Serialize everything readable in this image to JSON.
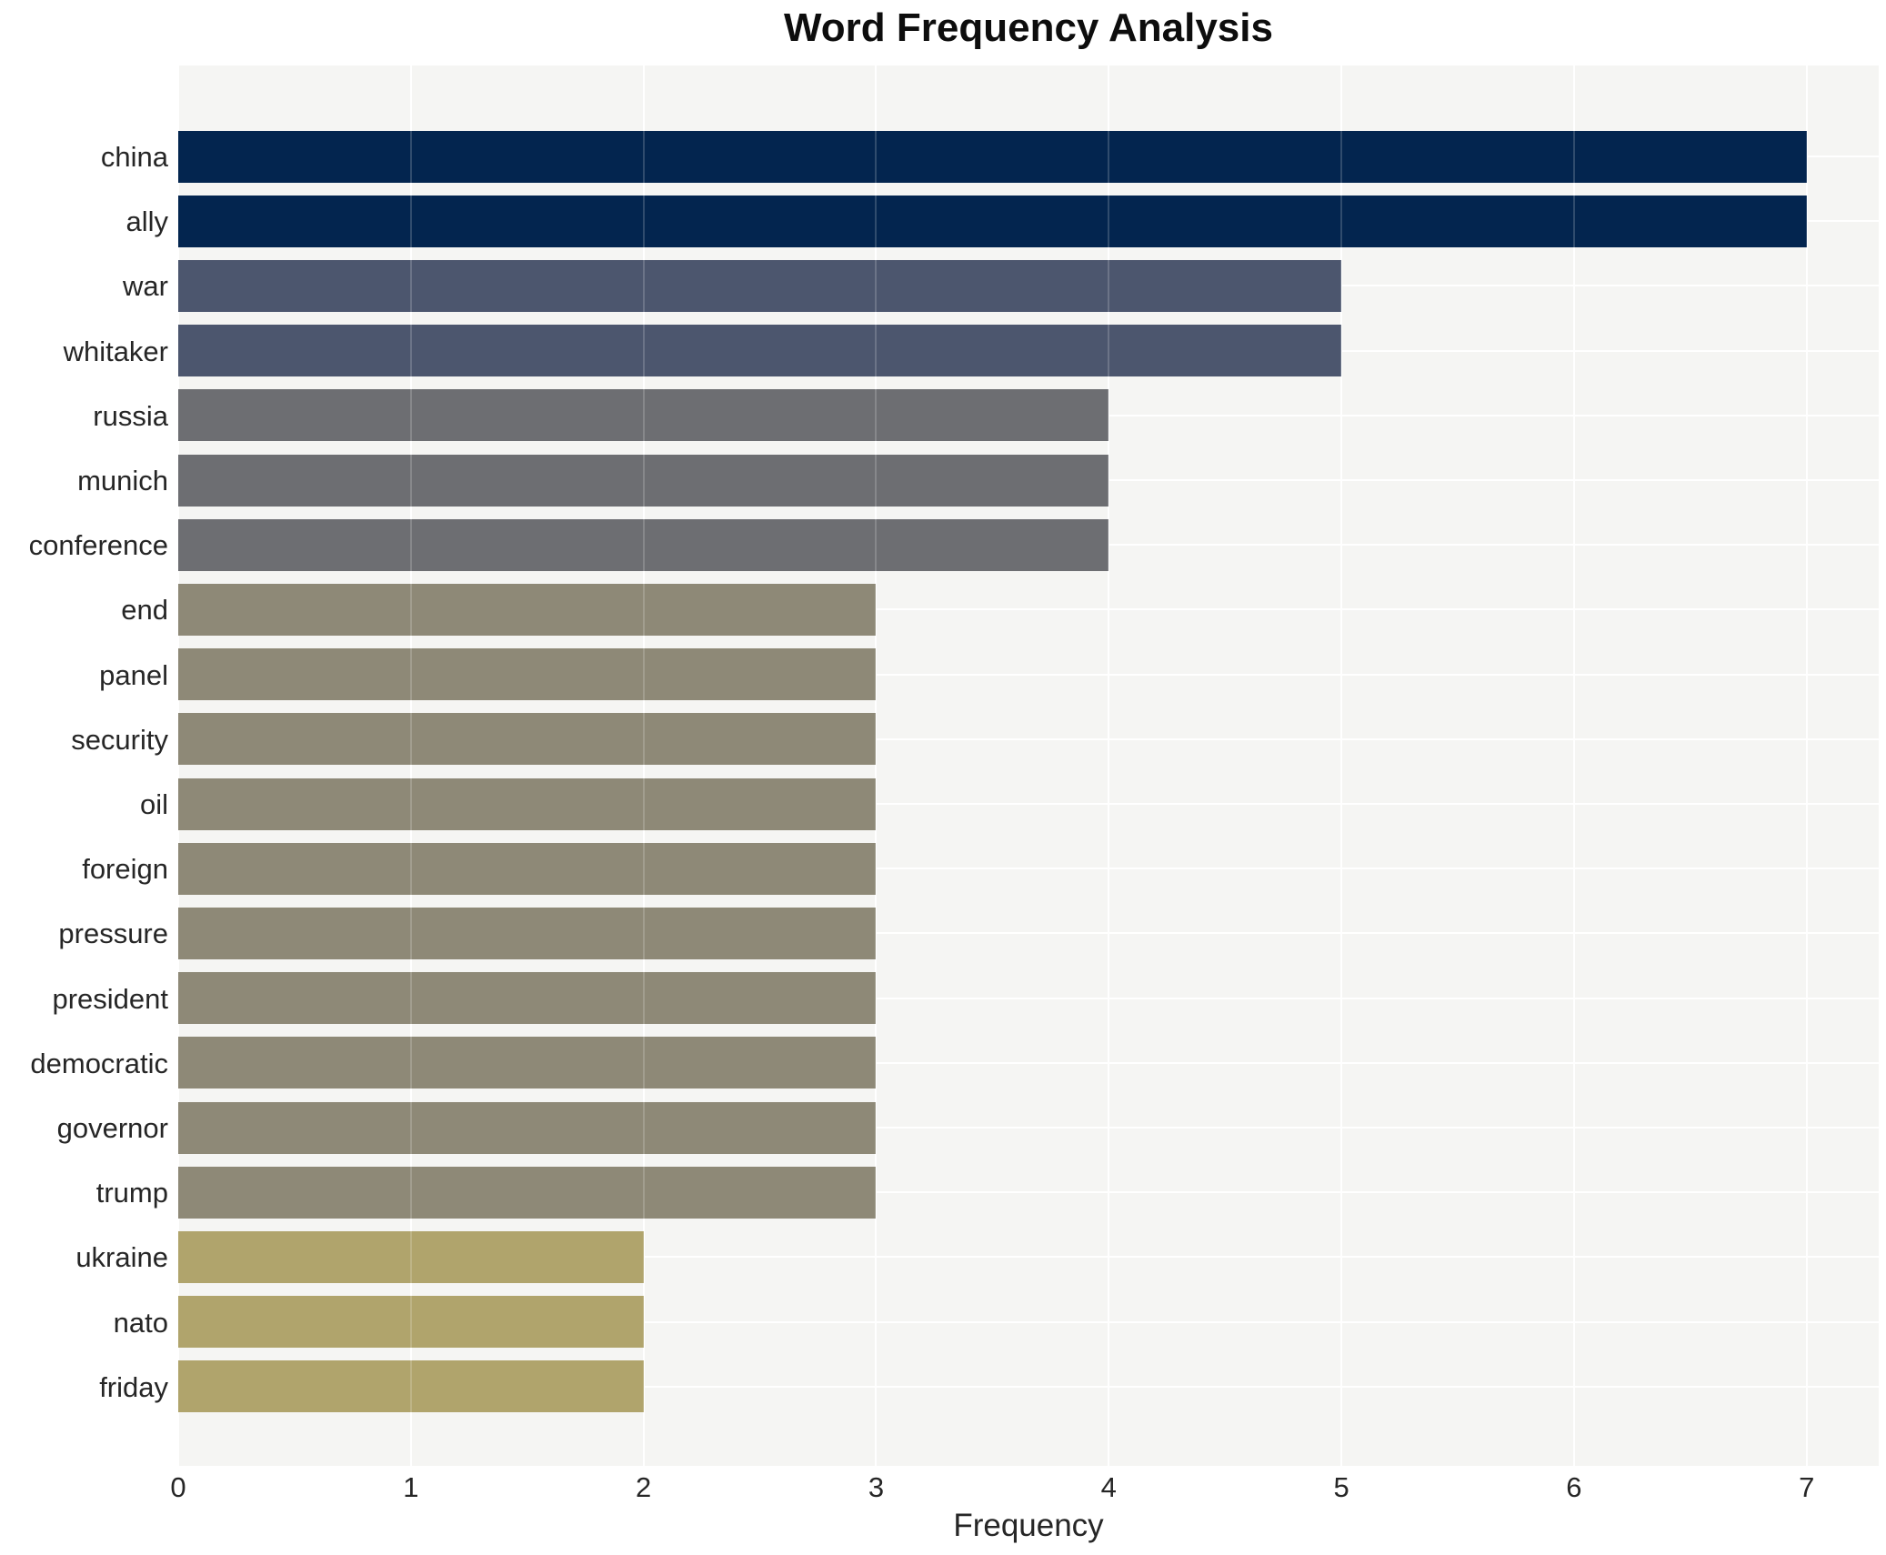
{
  "title": "Word Frequency Analysis",
  "chart_data": {
    "type": "bar",
    "orientation": "horizontal",
    "title": "Word Frequency Analysis",
    "xlabel": "Frequency",
    "ylabel": "",
    "categories": [
      "china",
      "ally",
      "war",
      "whitaker",
      "russia",
      "munich",
      "conference",
      "end",
      "panel",
      "security",
      "oil",
      "foreign",
      "pressure",
      "president",
      "democratic",
      "governor",
      "trump",
      "ukraine",
      "nato",
      "friday"
    ],
    "values": [
      7,
      7,
      5,
      5,
      4,
      4,
      4,
      3,
      3,
      3,
      3,
      3,
      3,
      3,
      3,
      3,
      3,
      2,
      2,
      2
    ],
    "xlim": [
      0,
      7.31
    ],
    "xticks": [
      0,
      1,
      2,
      3,
      4,
      5,
      6,
      7
    ],
    "grid": true,
    "legend": false,
    "colors_by_value": {
      "7": "#03254f",
      "5": "#4c566e",
      "4": "#6d6e72",
      "3": "#8e8977",
      "2": "#b0a46c"
    },
    "plot_bg": "#f5f5f3",
    "fig_bg": "#ffffff",
    "gridline_color": "#ffffff"
  }
}
